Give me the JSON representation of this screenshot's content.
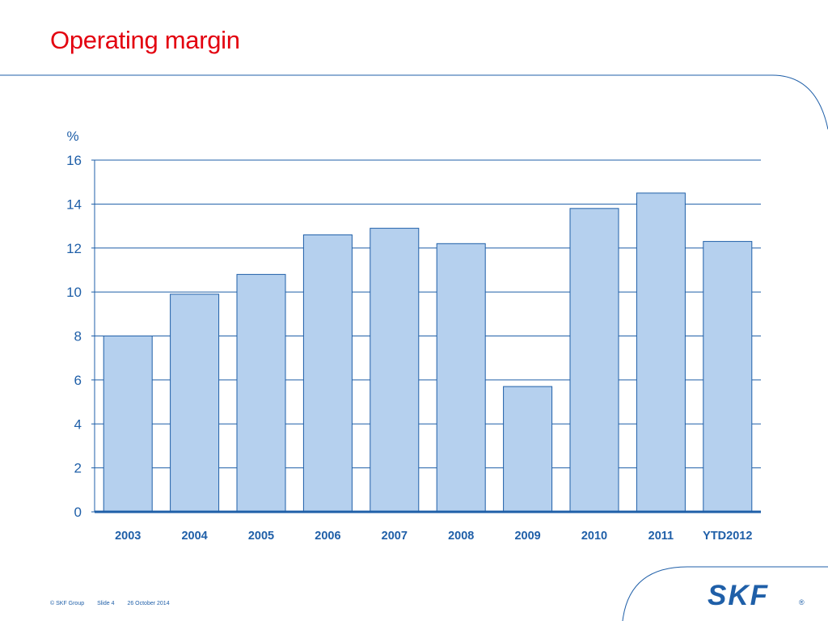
{
  "slide": {
    "title": "Operating margin",
    "footer": {
      "copyright": "© SKF Group",
      "slide_label": "Slide 4",
      "date": "26 October 2014"
    },
    "logo_text": "SKF",
    "logo_mark": "®"
  },
  "colors": {
    "title": "#e3000f",
    "accent": "#1f5fa8",
    "bar_fill": "#b5d0ee",
    "bar_stroke": "#1f5fa8"
  },
  "chart_data": {
    "type": "bar",
    "title": "",
    "xlabel": "",
    "ylabel": "%",
    "categories": [
      "2003",
      "2004",
      "2005",
      "2006",
      "2007",
      "2008",
      "2009",
      "2010",
      "2011",
      "YTD2012"
    ],
    "values": [
      8.0,
      9.9,
      10.8,
      12.6,
      12.9,
      12.2,
      5.7,
      13.8,
      14.5,
      12.3
    ],
    "ylim": [
      0,
      16
    ],
    "yticks": [
      0,
      2,
      4,
      6,
      8,
      10,
      12,
      14,
      16
    ],
    "grid": true,
    "legend": "none"
  }
}
